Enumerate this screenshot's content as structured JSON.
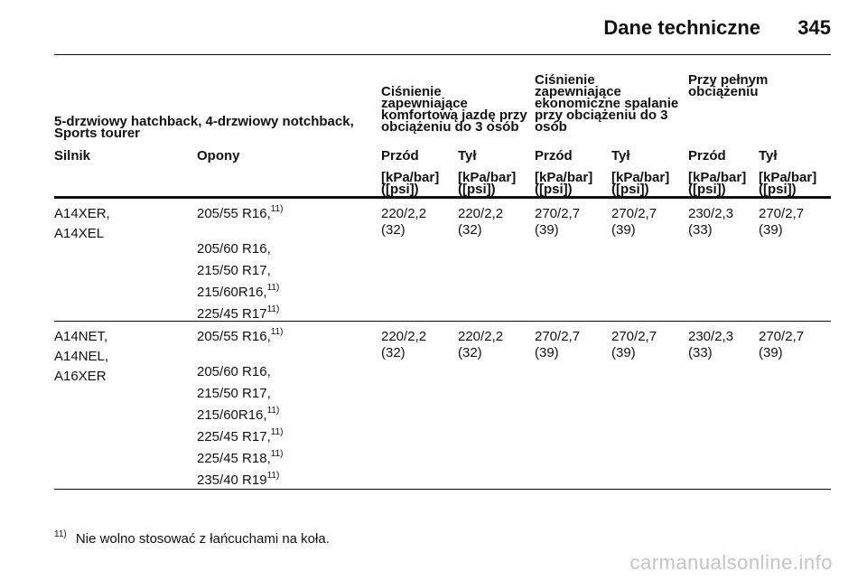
{
  "page": {
    "title": "Dane techniczne",
    "number": "345"
  },
  "table": {
    "groups": {
      "model": "5-drzwiowy hatchback, 4-drzwiowy notchback, Sports tourer",
      "comfort": "Ciśnienie zapewniające komfortową jazdę przy obciążeniu do 3 osób",
      "eco": "Ciśnienie zapewniające ekonomiczne spalanie przy obciążeniu do 3 osób",
      "full": "Przy pełnym obciążeniu"
    },
    "columns": {
      "engine": "Silnik",
      "tyres": "Opony",
      "front": "Przód",
      "rear": "Tył"
    },
    "unit_line1": "[kPa/bar]",
    "unit_line2": "([psi])",
    "row1": {
      "engines": [
        "A14XER,",
        "A14XEL"
      ],
      "tyres": [
        "205/55 R16,",
        "205/60 R16,",
        "215/50 R17,",
        "215/60R16,",
        "225/45 R17"
      ],
      "tyre_notes": [
        "11)",
        "",
        "",
        "11)",
        "11)"
      ],
      "values": [
        {
          "a": "220/2,2",
          "b": "(32)"
        },
        {
          "a": "220/2,2",
          "b": "(32)"
        },
        {
          "a": "270/2,7",
          "b": "(39)"
        },
        {
          "a": "270/2,7",
          "b": "(39)"
        },
        {
          "a": "230/2,3",
          "b": "(33)"
        },
        {
          "a": "270/2,7",
          "b": "(39)"
        }
      ]
    },
    "row2": {
      "engines": [
        "A14NET,",
        "A14NEL,",
        "A16XER"
      ],
      "tyres": [
        "205/55 R16,",
        "205/60 R16,",
        "215/50 R17,",
        "215/60R16,",
        "225/45 R17,",
        "225/45 R18,",
        "235/40 R19"
      ],
      "tyre_notes": [
        "11)",
        "",
        "",
        "11)",
        "11)",
        "11)",
        "11)"
      ],
      "values": [
        {
          "a": "220/2,2",
          "b": "(32)"
        },
        {
          "a": "220/2,2",
          "b": "(32)"
        },
        {
          "a": "270/2,7",
          "b": "(39)"
        },
        {
          "a": "270/2,7",
          "b": "(39)"
        },
        {
          "a": "230/2,3",
          "b": "(33)"
        },
        {
          "a": "270/2,7",
          "b": "(39)"
        }
      ]
    }
  },
  "footnote": {
    "mark": "11)",
    "text": "Nie wolno stosować z łańcuchami na koła."
  },
  "watermark": "carmanualsonline.info"
}
